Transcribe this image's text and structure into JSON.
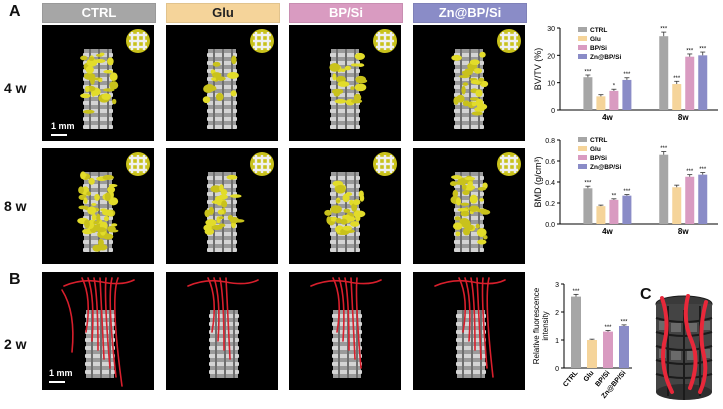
{
  "panels": {
    "a": "A",
    "b": "B",
    "c": "C"
  },
  "groups": [
    {
      "label": "CTRL",
      "color": "#a6a6a6"
    },
    {
      "label": "Glu",
      "color": "#f5d49a"
    },
    {
      "label": "BP/Si",
      "color": "#d99bc1"
    },
    {
      "label": "Zn@BP/Si",
      "color": "#8a8cc7"
    }
  ],
  "rows": [
    "4 w",
    "8 w",
    "2 w"
  ],
  "scale_bar": "1 mm",
  "chart_data": [
    {
      "type": "bar",
      "categories": [
        "4w",
        "8w"
      ],
      "series": [
        {
          "name": "CTRL",
          "values": [
            12,
            27
          ]
        },
        {
          "name": "Glu",
          "values": [
            5,
            9.5
          ]
        },
        {
          "name": "BP/Si",
          "values": [
            7,
            19.5
          ]
        },
        {
          "name": "Zn@BP/Si",
          "values": [
            11,
            20
          ]
        }
      ],
      "errors": [
        [
          0.8,
          1.5
        ],
        [
          0.6,
          1.0
        ],
        [
          0.6,
          1.0
        ],
        [
          0.8,
          1.2
        ]
      ],
      "sig": [
        [
          "***",
          "***"
        ],
        [
          "",
          "***"
        ],
        [
          "*",
          "***"
        ],
        [
          "***",
          "***"
        ]
      ],
      "ylabel": "BV/TV (%)",
      "ylim": [
        0,
        30
      ],
      "yticks": [
        0,
        10,
        20,
        30
      ],
      "legend": "top-left"
    },
    {
      "type": "bar",
      "categories": [
        "4w",
        "8w"
      ],
      "series": [
        {
          "name": "CTRL",
          "values": [
            0.34,
            0.66
          ]
        },
        {
          "name": "Glu",
          "values": [
            0.17,
            0.35
          ]
        },
        {
          "name": "BP/Si",
          "values": [
            0.23,
            0.45
          ]
        },
        {
          "name": "Zn@BP/Si",
          "values": [
            0.27,
            0.47
          ]
        }
      ],
      "errors": [
        [
          0.02,
          0.03
        ],
        [
          0.01,
          0.02
        ],
        [
          0.01,
          0.02
        ],
        [
          0.01,
          0.02
        ]
      ],
      "sig": [
        [
          "***",
          "***"
        ],
        [
          "",
          ""
        ],
        [
          "**",
          "***"
        ],
        [
          "***",
          "***"
        ]
      ],
      "ylabel": "BMD (g/cm³)",
      "ylim": [
        0,
        0.8
      ],
      "yticks": [
        0.0,
        0.2,
        0.4,
        0.6,
        0.8
      ],
      "legend": "top-left"
    },
    {
      "type": "bar",
      "categories": [
        "CTRL",
        "Glu",
        "BP/Si",
        "Zn@BP/Si"
      ],
      "values": [
        2.55,
        1.0,
        1.3,
        1.5
      ],
      "errors": [
        0.08,
        0.03,
        0.04,
        0.04
      ],
      "sig": [
        "***",
        "",
        "***",
        "***"
      ],
      "ylabel": "Relative fluorescence intensity",
      "ylim": [
        0,
        3
      ],
      "yticks": [
        0,
        1,
        2,
        3
      ]
    }
  ]
}
